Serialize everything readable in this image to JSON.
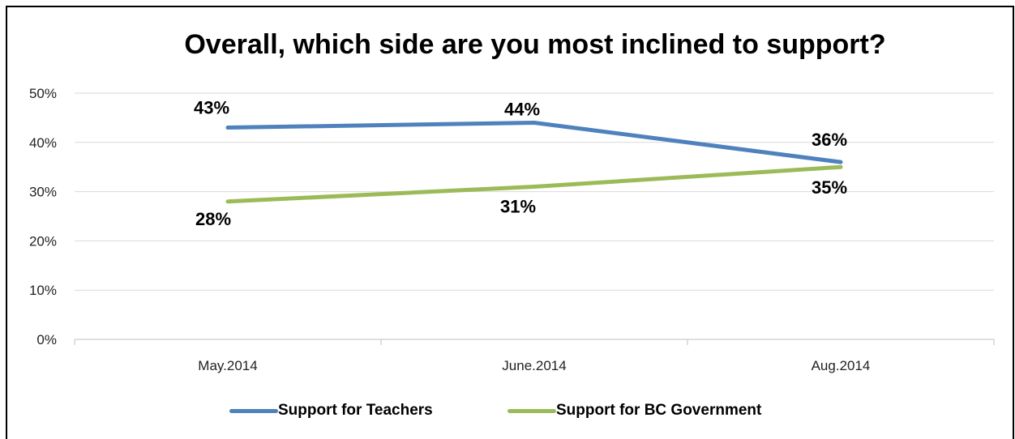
{
  "chart_data": {
    "type": "line",
    "title": "Overall, which side are you most inclined to support?",
    "categories": [
      "May.2014",
      "June.2014",
      "Aug.2014"
    ],
    "series": [
      {
        "name": "Support for Teachers",
        "values": [
          43,
          44,
          36
        ],
        "labels": [
          "43%",
          "44%",
          "36%"
        ],
        "color": "#4f81bd"
      },
      {
        "name": "Support for BC Government",
        "values": [
          28,
          31,
          35
        ],
        "labels": [
          "28%",
          "31%",
          "35%"
        ],
        "color": "#9bbb59"
      }
    ],
    "ylim": [
      0,
      50
    ],
    "yticks": [
      0,
      10,
      20,
      30,
      40,
      50
    ],
    "ytick_labels": [
      "0%",
      "10%",
      "20%",
      "30%",
      "40%",
      "50%"
    ],
    "grid": true,
    "legend": "bottom",
    "xlabel": "",
    "ylabel": ""
  }
}
